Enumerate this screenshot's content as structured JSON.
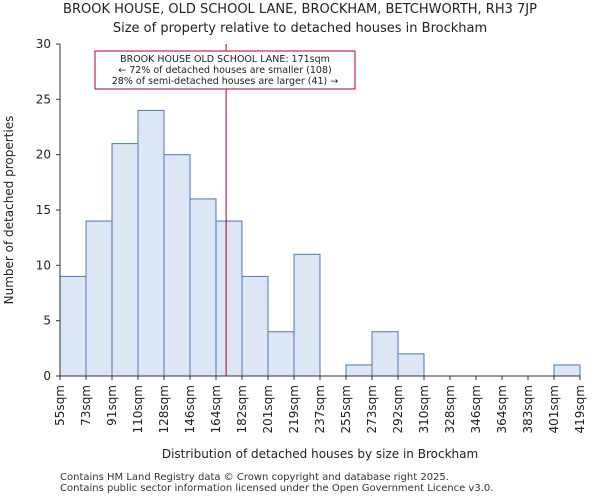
{
  "title_line1": "BROOK HOUSE, OLD SCHOOL LANE, BROCKHAM, BETCHWORTH, RH3 7JP",
  "title_line2": "Size of property relative to detached houses in Brockham",
  "footer_line1": "Contains HM Land Registry data © Crown copyright and database right 2025.",
  "footer_line2": "Contains public sector information licensed under the Open Government Licence v3.0.",
  "colors": {
    "bar_fill": "#dce6f5",
    "bar_stroke": "#4a78b5",
    "marker": "#b00020"
  },
  "chart_data": {
    "type": "bar",
    "title": "Size of property relative to detached houses in Brockham",
    "xlabel": "Distribution of detached houses by size in Brockham",
    "ylabel": "Number of detached properties",
    "ylim": [
      0,
      30
    ],
    "yticks": [
      0,
      5,
      10,
      15,
      20,
      25,
      30
    ],
    "bin_edges": [
      55,
      73,
      91,
      110,
      128,
      146,
      164,
      182,
      201,
      219,
      237,
      255,
      273,
      292,
      310,
      328,
      346,
      364,
      383,
      401,
      419
    ],
    "tick_labels": [
      "55sqm",
      "73sqm",
      "91sqm",
      "110sqm",
      "128sqm",
      "146sqm",
      "164sqm",
      "182sqm",
      "201sqm",
      "219sqm",
      "237sqm",
      "255sqm",
      "273sqm",
      "292sqm",
      "310sqm",
      "328sqm",
      "346sqm",
      "364sqm",
      "383sqm",
      "401sqm",
      "419sqm"
    ],
    "values": [
      9,
      14,
      21,
      24,
      20,
      16,
      14,
      9,
      4,
      11,
      0,
      1,
      4,
      2,
      0,
      0,
      0,
      0,
      0,
      1
    ],
    "property_size": 171,
    "annotation": [
      "BROOK HOUSE OLD SCHOOL LANE: 171sqm",
      "← 72% of detached houses are smaller (108)",
      "28% of semi-detached houses are larger (41) →"
    ]
  }
}
